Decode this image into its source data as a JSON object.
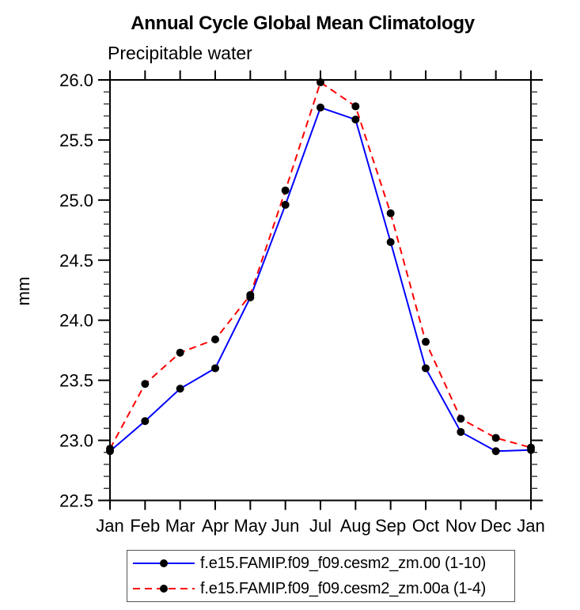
{
  "header": {
    "title": "Annual Cycle Global Mean Climatology",
    "subtitle": "Precipitable water"
  },
  "chart_data": {
    "type": "line",
    "title": "Annual Cycle Global Mean Climatology",
    "subtitle": "Precipitable water",
    "ylabel": "mm",
    "xlabel": "",
    "categories": [
      "Jan",
      "Feb",
      "Mar",
      "Apr",
      "May",
      "Jun",
      "Jul",
      "Aug",
      "Sep",
      "Oct",
      "Nov",
      "Dec",
      "Jan"
    ],
    "ylim": [
      22.5,
      26.0
    ],
    "yticks": [
      22.5,
      23.0,
      23.5,
      24.0,
      24.5,
      25.0,
      25.5,
      26.0
    ],
    "y_minor_step": 0.1,
    "grid": false,
    "legend_position": "bottom",
    "series": [
      {
        "name": "f.e15.FAMIP.f09_f09.cesm2_zm.00 (1-10)",
        "color": "#0000ff",
        "line_style": "solid",
        "marker": "filled-circle",
        "marker_color": "#000000",
        "values": [
          22.91,
          23.16,
          23.43,
          23.6,
          24.19,
          24.96,
          25.77,
          25.67,
          24.65,
          23.6,
          23.07,
          22.91,
          22.92
        ]
      },
      {
        "name": "f.e15.FAMIP.f09_f09.cesm2_zm.00a (1-4)",
        "color": "#ff0000",
        "line_style": "dashed",
        "marker": "filled-circle",
        "marker_color": "#000000",
        "values": [
          22.93,
          23.47,
          23.73,
          23.84,
          24.21,
          25.08,
          25.98,
          25.78,
          24.89,
          23.82,
          23.18,
          23.02,
          22.94
        ]
      }
    ]
  },
  "colors": {
    "axis": "#000000",
    "minor_tick": "#333333",
    "marker": "#000000",
    "legend_border": "#555555"
  }
}
